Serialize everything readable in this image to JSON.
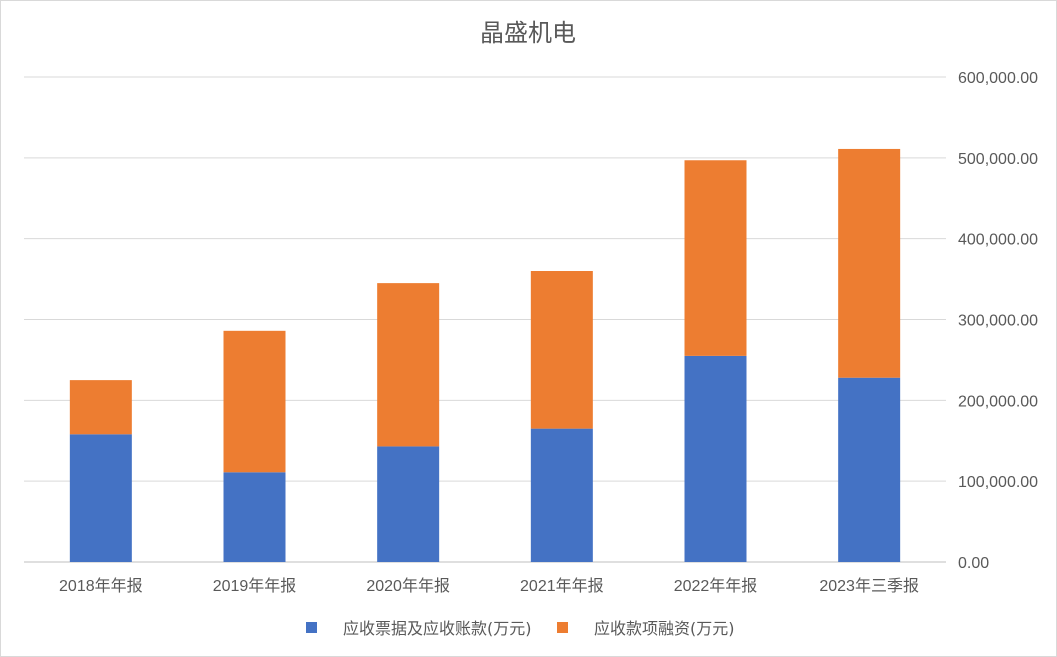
{
  "chart_data": {
    "type": "bar",
    "stacked": true,
    "title": "晶盛机电",
    "categories": [
      "2018年年报",
      "2019年年报",
      "2020年年报",
      "2021年年报",
      "2022年年报",
      "2023年三季报"
    ],
    "series": [
      {
        "name": "应收票据及应收账款(万元)",
        "color": "#4472C4",
        "values": [
          158000,
          111000,
          143000,
          165000,
          255000,
          228000
        ]
      },
      {
        "name": "应收款项融资(万元)",
        "color": "#ED7D31",
        "values": [
          67000,
          175000,
          202000,
          195000,
          242000,
          283000
        ]
      }
    ],
    "y_ticks": [
      "0.00",
      "100,000.00",
      "200,000.00",
      "300,000.00",
      "400,000.00",
      "500,000.00",
      "600,000.00"
    ],
    "ylim": [
      0,
      600000
    ],
    "y_axis_side": "right",
    "grid": true,
    "legend_position": "bottom",
    "xlabel": "",
    "ylabel": ""
  }
}
